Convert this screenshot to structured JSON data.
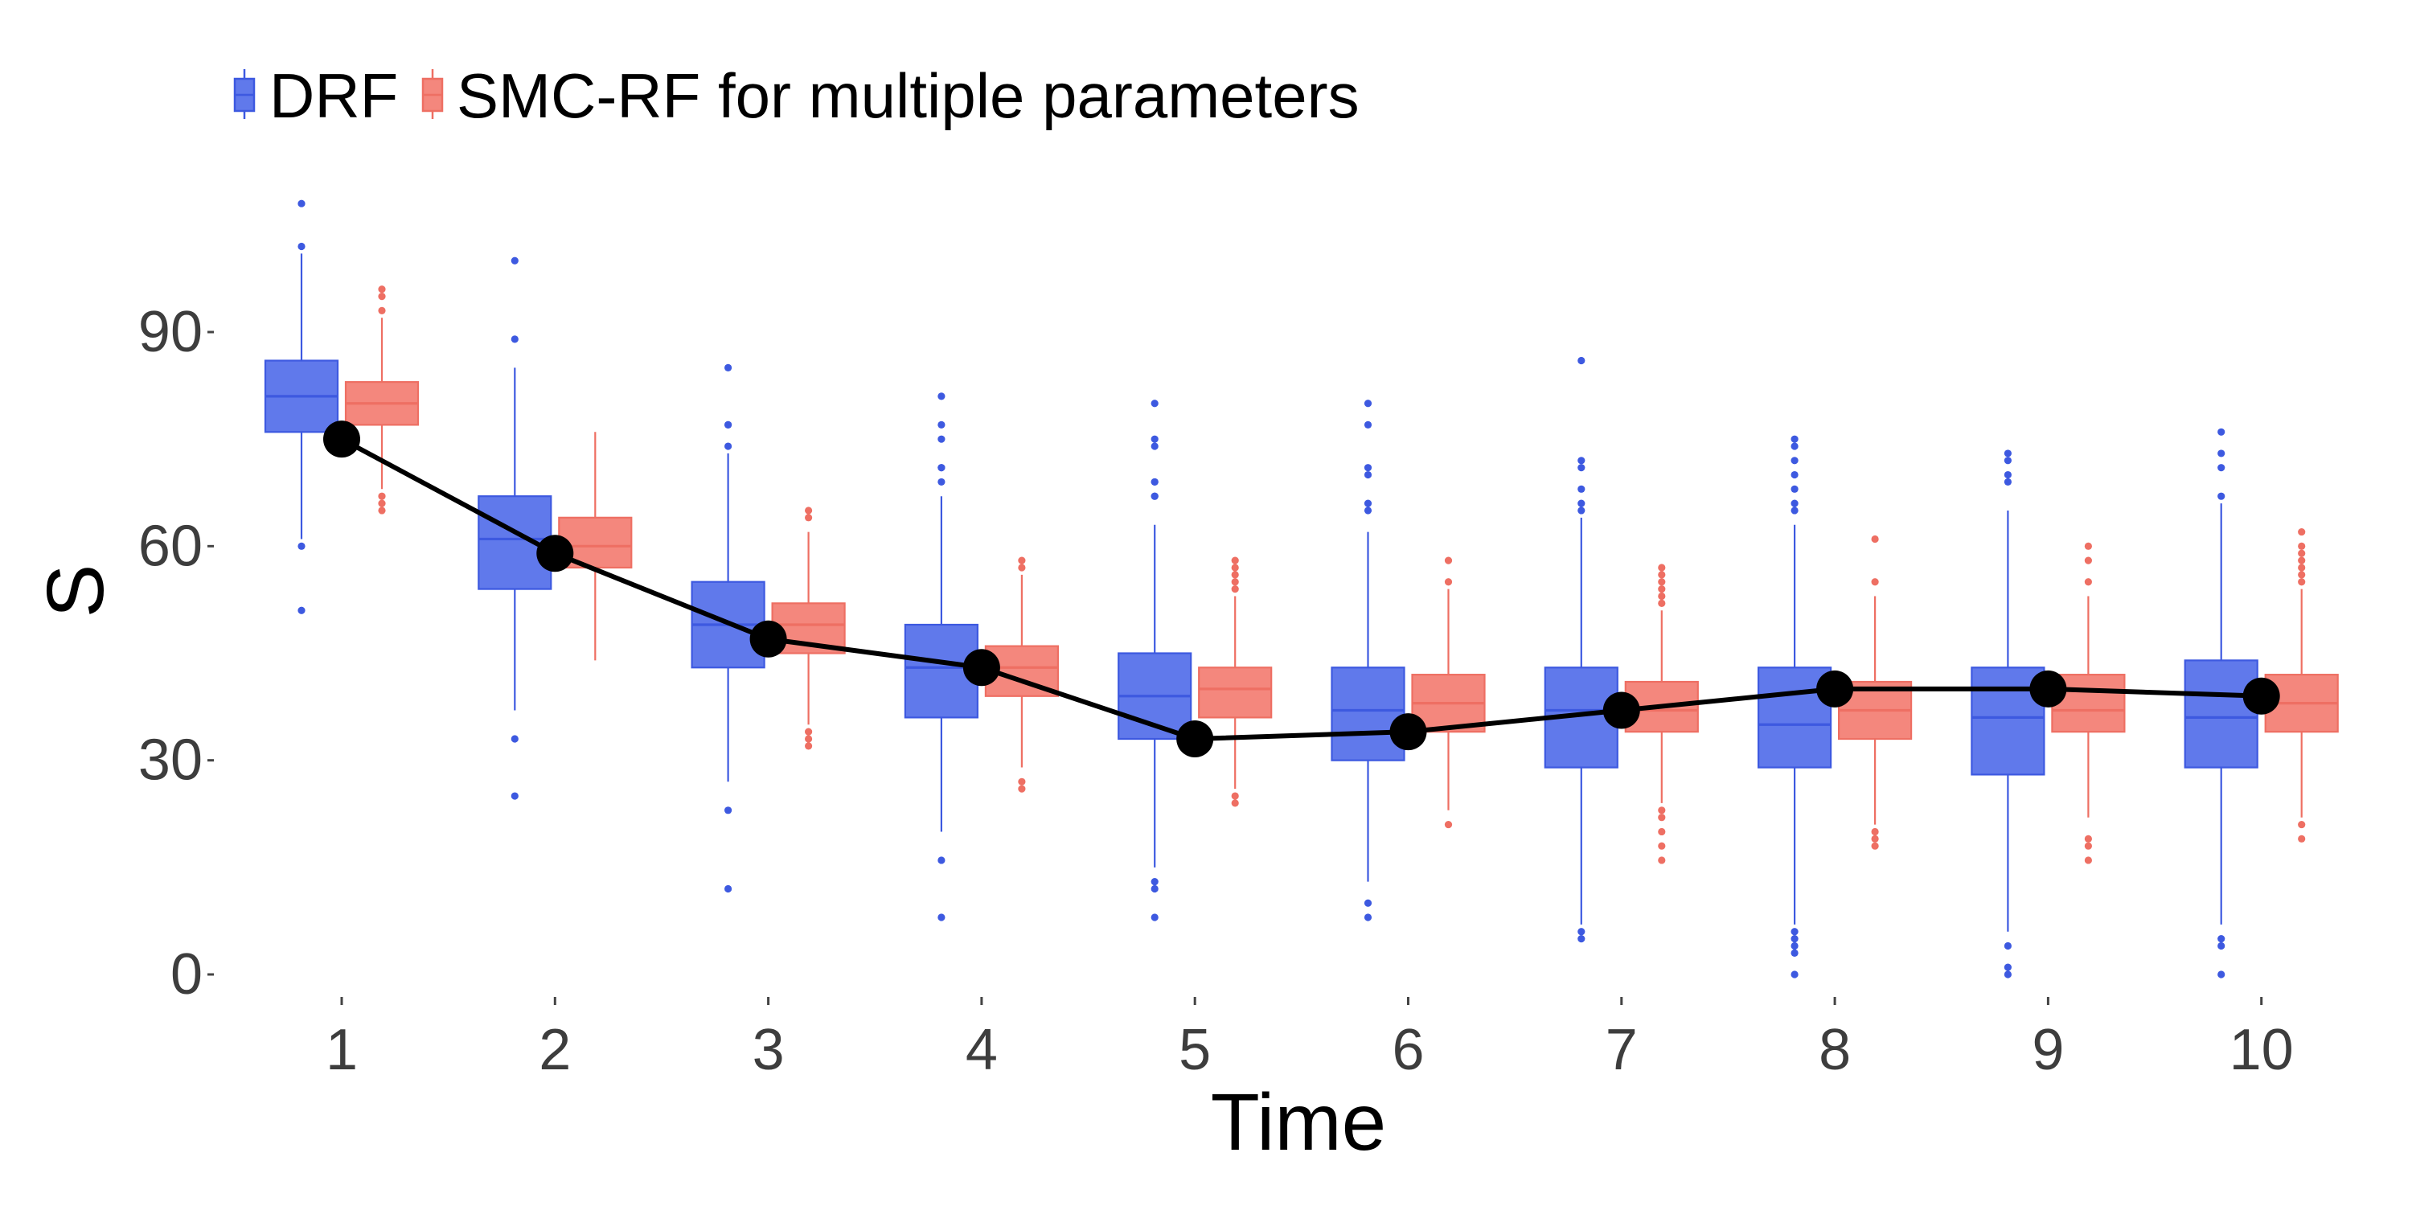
{
  "chart_data": {
    "type": "box",
    "xlabel": "Time",
    "ylabel": "S",
    "ylim": [
      -4,
      113
    ],
    "yticks": [
      0,
      30,
      60,
      90
    ],
    "categories": [
      "1",
      "2",
      "3",
      "4",
      "5",
      "6",
      "7",
      "8",
      "9",
      "10"
    ],
    "legend": {
      "position": "top-left",
      "entries": [
        "DRF",
        "SMC-RF for multiple parameters"
      ]
    },
    "colors": {
      "DRF_fill": "#6079eb",
      "DRF_line": "#3d59e0",
      "SMC_fill": "#f4877d",
      "SMC_line": "#ee6f63",
      "observed": "#000000"
    },
    "series": [
      {
        "name": "DRF",
        "boxes": [
          {
            "x": "1",
            "q1": 76,
            "median": 81,
            "q3": 86,
            "lower": 61,
            "upper": 101,
            "outliers": [
              108,
              102,
              60,
              51
            ]
          },
          {
            "x": "2",
            "q1": 54,
            "median": 61,
            "q3": 67,
            "lower": 37,
            "upper": 85,
            "outliers": [
              100,
              89,
              33,
              25
            ]
          },
          {
            "x": "3",
            "q1": 43,
            "median": 49,
            "q3": 55,
            "lower": 27,
            "upper": 73,
            "outliers": [
              85,
              77,
              77,
              74,
              23,
              12
            ]
          },
          {
            "x": "4",
            "q1": 36,
            "median": 43,
            "q3": 49,
            "lower": 20,
            "upper": 67,
            "outliers": [
              81,
              77,
              75,
              71,
              71,
              69,
              16,
              8
            ]
          },
          {
            "x": "5",
            "q1": 33,
            "median": 39,
            "q3": 45,
            "lower": 15,
            "upper": 63,
            "outliers": [
              80,
              75,
              74,
              69,
              69,
              67,
              67,
              13,
              12,
              8
            ]
          },
          {
            "x": "6",
            "q1": 30,
            "median": 37,
            "q3": 43,
            "lower": 13,
            "upper": 62,
            "outliers": [
              80,
              77,
              71,
              70,
              66,
              65,
              10,
              8
            ]
          },
          {
            "x": "7",
            "q1": 29,
            "median": 37,
            "q3": 43,
            "lower": 7,
            "upper": 64,
            "outliers": [
              86,
              72,
              71,
              68,
              66,
              65,
              6,
              5
            ]
          },
          {
            "x": "8",
            "q1": 29,
            "median": 35,
            "q3": 43,
            "lower": 7,
            "upper": 63,
            "outliers": [
              75,
              74,
              72,
              70,
              68,
              66,
              65,
              6,
              5,
              4,
              3,
              0
            ]
          },
          {
            "x": "9",
            "q1": 28,
            "median": 36,
            "q3": 43,
            "lower": 6,
            "upper": 65,
            "outliers": [
              73,
              72,
              70,
              69,
              4,
              1,
              0
            ]
          },
          {
            "x": "10",
            "q1": 29,
            "median": 36,
            "q3": 44,
            "lower": 7,
            "upper": 66,
            "outliers": [
              76,
              73,
              71,
              67,
              5,
              4,
              0
            ]
          }
        ]
      },
      {
        "name": "SMC-RF for multiple parameters",
        "boxes": [
          {
            "x": "1",
            "q1": 77,
            "median": 80,
            "q3": 83,
            "lower": 68,
            "upper": 92,
            "outliers": [
              96,
              95,
              93,
              67,
              66,
              65
            ]
          },
          {
            "x": "2",
            "q1": 57,
            "median": 60,
            "q3": 64,
            "lower": 44,
            "upper": 76,
            "outliers": []
          },
          {
            "x": "3",
            "q1": 45,
            "median": 49,
            "q3": 52,
            "lower": 35,
            "upper": 62,
            "outliers": [
              65,
              64,
              34,
              33,
              32
            ]
          },
          {
            "x": "4",
            "q1": 39,
            "median": 43,
            "q3": 46,
            "lower": 29,
            "upper": 56,
            "outliers": [
              58,
              57,
              27,
              26
            ]
          },
          {
            "x": "5",
            "q1": 36,
            "median": 40,
            "q3": 43,
            "lower": 26,
            "upper": 53,
            "outliers": [
              58,
              57,
              56,
              55,
              54,
              25,
              24
            ]
          },
          {
            "x": "6",
            "q1": 34,
            "median": 38,
            "q3": 42,
            "lower": 23,
            "upper": 54,
            "outliers": [
              58,
              55,
              21
            ]
          },
          {
            "x": "7",
            "q1": 34,
            "median": 37,
            "q3": 41,
            "lower": 24,
            "upper": 51,
            "outliers": [
              57,
              56,
              55,
              54,
              53,
              52,
              23,
              22,
              20,
              18,
              16
            ]
          },
          {
            "x": "8",
            "q1": 33,
            "median": 37,
            "q3": 41,
            "lower": 21,
            "upper": 53,
            "outliers": [
              61,
              55,
              20,
              19,
              18
            ]
          },
          {
            "x": "9",
            "q1": 34,
            "median": 37,
            "q3": 42,
            "lower": 22,
            "upper": 53,
            "outliers": [
              60,
              58,
              55,
              19,
              18,
              16
            ]
          },
          {
            "x": "10",
            "q1": 34,
            "median": 38,
            "q3": 42,
            "lower": 22,
            "upper": 54,
            "outliers": [
              62,
              60,
              59,
              58,
              57,
              56,
              55,
              21,
              19
            ]
          }
        ]
      }
    ],
    "observed": {
      "x": [
        "1",
        "2",
        "3",
        "4",
        "5",
        "6",
        "7",
        "8",
        "9",
        "10"
      ],
      "y": [
        75,
        59,
        47,
        43,
        33,
        34,
        37,
        40,
        40,
        39
      ]
    }
  }
}
